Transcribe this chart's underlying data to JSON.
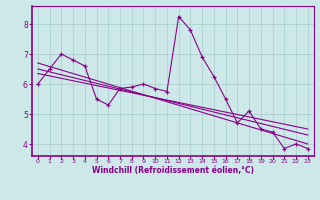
{
  "xlabel": "Windchill (Refroidissement éolien,°C)",
  "bg_color": "#cce8e8",
  "line_color": "#8b008b",
  "grid_color": "#aacccc",
  "x_ticks": [
    0,
    1,
    2,
    3,
    4,
    5,
    6,
    7,
    8,
    9,
    10,
    11,
    12,
    13,
    14,
    15,
    16,
    17,
    18,
    19,
    20,
    21,
    22,
    23
  ],
  "y_ticks": [
    4,
    5,
    6,
    7,
    8
  ],
  "ylim": [
    3.6,
    8.6
  ],
  "xlim": [
    -0.5,
    23.5
  ],
  "series1_x": [
    0,
    1,
    2,
    3,
    4,
    5,
    6,
    7,
    8,
    9,
    10,
    11,
    12,
    13,
    14,
    15,
    16,
    17,
    18,
    19,
    20,
    21,
    22,
    23
  ],
  "series1_y": [
    6.0,
    6.5,
    7.0,
    6.8,
    6.6,
    5.5,
    5.3,
    5.85,
    5.9,
    6.0,
    5.85,
    5.75,
    8.25,
    7.8,
    6.9,
    6.25,
    5.5,
    4.7,
    5.1,
    4.5,
    4.4,
    3.85,
    4.0,
    3.85
  ],
  "trend1_x": [
    0,
    23
  ],
  "trend1_y": [
    6.7,
    4.0
  ],
  "trend2_x": [
    0,
    23
  ],
  "trend2_y": [
    6.5,
    4.3
  ],
  "trend3_x": [
    0,
    23
  ],
  "trend3_y": [
    6.35,
    4.5
  ],
  "xlabel_color": "#880088",
  "tick_color": "#880088",
  "spine_color": "#880088"
}
